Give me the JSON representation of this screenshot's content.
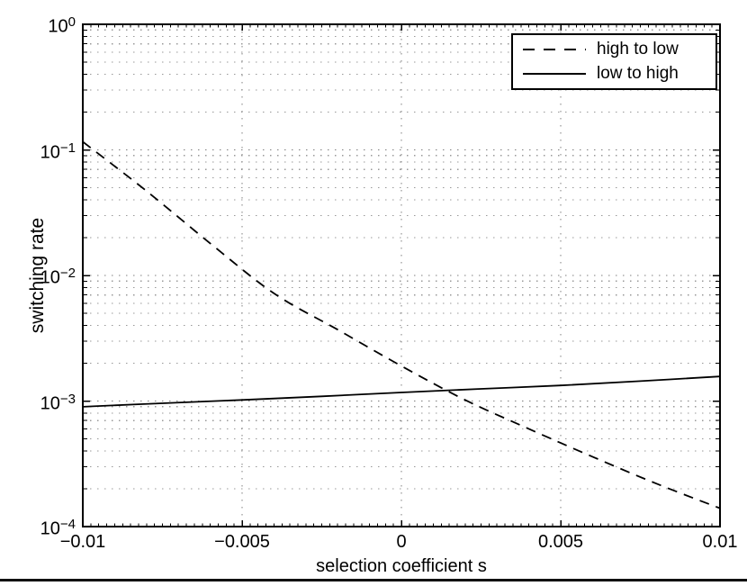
{
  "axes": {
    "xlabel": "selection coefficient s",
    "ylabel": "switching rate",
    "x_ticks": [
      {
        "label": "−0.01",
        "value": -0.01
      },
      {
        "label": "−0.005",
        "value": -0.005
      },
      {
        "label": "0",
        "value": 0
      },
      {
        "label": "0.005",
        "value": 0.005
      },
      {
        "label": "0.01",
        "value": 0.01
      }
    ],
    "y_ticks": [
      {
        "base": "10",
        "exp": "0",
        "value": 1
      },
      {
        "base": "10",
        "exp": "−1",
        "value": 0.1
      },
      {
        "base": "10",
        "exp": "−2",
        "value": 0.01
      },
      {
        "base": "10",
        "exp": "−3",
        "value": 0.001
      },
      {
        "base": "10",
        "exp": "−4",
        "value": 0.0001
      }
    ]
  },
  "legend": {
    "items": [
      {
        "label": "high to low",
        "line_style": "dashed"
      },
      {
        "label": "low to high",
        "line_style": "solid"
      }
    ]
  },
  "colors": {
    "axis": "#000000",
    "line": "#000000",
    "grid_major": "#7f7f7f",
    "grid_minor": "#989898",
    "background": "#ffffff"
  },
  "chart_data": {
    "type": "line",
    "title": "",
    "xlabel": "selection coefficient s",
    "ylabel": "switching rate",
    "xlim": [
      -0.01,
      0.01
    ],
    "ylim": [
      0.0001,
      1
    ],
    "xscale": "linear",
    "yscale": "log",
    "grid": true,
    "minor_grid": true,
    "legend_position": "top-right",
    "series": [
      {
        "name": "high to low",
        "style": "dashed",
        "x": [
          -0.01,
          -0.008,
          -0.006,
          -0.004,
          -0.002,
          0,
          0.002,
          0.004,
          0.006,
          0.008,
          0.01
        ],
        "y": [
          0.116,
          0.047,
          0.018,
          0.0072,
          0.0037,
          0.0019,
          0.00102,
          0.0006,
          0.00036,
          0.00022,
          0.00014
        ]
      },
      {
        "name": "low to high",
        "style": "solid",
        "x": [
          -0.01,
          -0.0075,
          -0.005,
          -0.0025,
          0,
          0.0025,
          0.005,
          0.0075,
          0.01
        ],
        "y": [
          0.0009,
          0.00096,
          0.00102,
          0.00109,
          0.00117,
          0.00125,
          0.00133,
          0.00144,
          0.00157
        ]
      }
    ]
  }
}
